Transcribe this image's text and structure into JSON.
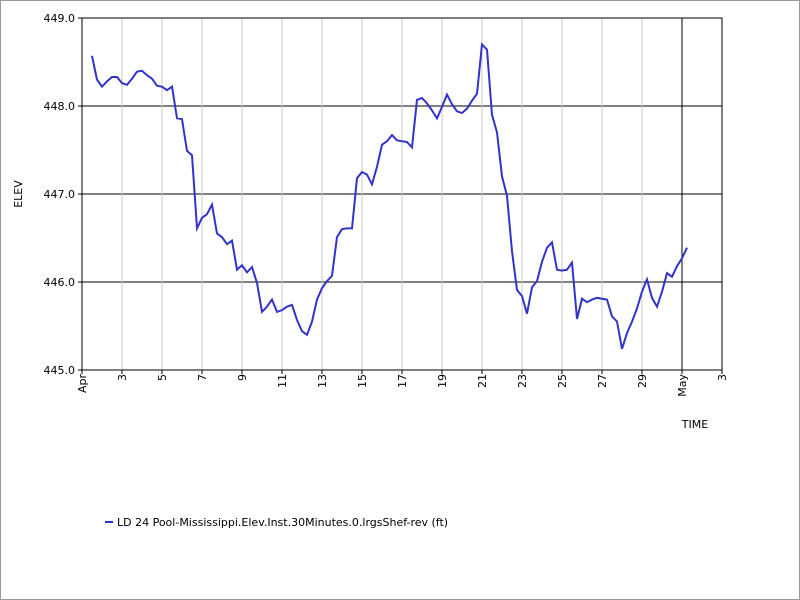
{
  "chart_data": {
    "type": "line",
    "y_label": "ELEV",
    "x_label": "TIME",
    "xlim": [
      1,
      33
    ],
    "xticks": [
      {
        "value": 1,
        "label": "Apr"
      },
      3,
      5,
      7,
      9,
      11,
      13,
      15,
      17,
      19,
      21,
      23,
      25,
      27,
      29,
      {
        "value": 31,
        "label": "May"
      },
      {
        "value": 33,
        "label": "3"
      }
    ],
    "ylim": [
      445.0,
      449.0
    ],
    "yticks": [
      {
        "value": 445,
        "label": "445.0"
      },
      {
        "value": 446,
        "label": "446.0"
      },
      {
        "value": 447,
        "label": "447.0"
      },
      {
        "value": 448,
        "label": "448.0"
      },
      {
        "value": 449,
        "label": "449.0"
      }
    ],
    "grid": true,
    "x": [
      1.5,
      1.75,
      2,
      2.25,
      2.5,
      2.75,
      3,
      3.25,
      3.5,
      3.75,
      4,
      4.25,
      4.5,
      4.75,
      5,
      5.25,
      5.5,
      5.75,
      6,
      6.25,
      6.5,
      6.75,
      7,
      7.25,
      7.5,
      7.75,
      8,
      8.25,
      8.5,
      8.75,
      9,
      9.25,
      9.5,
      9.75,
      10,
      10.25,
      10.5,
      10.75,
      11,
      11.25,
      11.5,
      11.75,
      12,
      12.25,
      12.5,
      12.75,
      13,
      13.25,
      13.5,
      13.75,
      14,
      14.25,
      14.5,
      14.75,
      15,
      15.25,
      15.5,
      15.75,
      16,
      16.25,
      16.5,
      16.75,
      17,
      17.25,
      17.5,
      17.75,
      18,
      18.25,
      18.5,
      18.75,
      19,
      19.25,
      19.5,
      19.75,
      20,
      20.25,
      20.5,
      20.75,
      21,
      21.25,
      21.5,
      21.75,
      22,
      22.25,
      22.5,
      22.75,
      23,
      23.25,
      23.5,
      23.75,
      24,
      24.25,
      24.5,
      24.75,
      25,
      25.25,
      25.5,
      25.75,
      26,
      26.25,
      26.5,
      26.75,
      27,
      27.25,
      27.5,
      27.75,
      28,
      28.25,
      28.5,
      28.75,
      29,
      29.25,
      29.5,
      29.75,
      30,
      30.25,
      30.5,
      30.75,
      31,
      31.25
    ],
    "series": [
      {
        "name": "LD 24 Pool-Mississippi.Elev.Inst.30Minutes.0.lrgsShef-rev (ft)",
        "color": "#3333cc",
        "values": [
          448.57,
          448.3,
          448.22,
          448.28,
          448.33,
          448.33,
          448.26,
          448.24,
          448.31,
          448.39,
          448.4,
          448.35,
          448.31,
          448.23,
          448.22,
          448.18,
          448.22,
          447.86,
          447.85,
          447.49,
          447.44,
          446.61,
          446.73,
          446.77,
          446.88,
          446.55,
          446.51,
          446.43,
          446.47,
          446.14,
          446.19,
          446.11,
          446.17,
          445.99,
          445.66,
          445.72,
          445.8,
          445.66,
          445.68,
          445.72,
          445.74,
          445.57,
          445.44,
          445.4,
          445.55,
          445.8,
          445.93,
          446.01,
          446.07,
          446.51,
          446.6,
          446.61,
          446.61,
          447.18,
          447.25,
          447.22,
          447.11,
          447.31,
          447.56,
          447.6,
          447.67,
          447.61,
          447.6,
          447.59,
          447.53,
          448.07,
          448.09,
          448.03,
          447.95,
          447.86,
          447.99,
          448.13,
          448.02,
          447.94,
          447.92,
          447.97,
          448.06,
          448.14,
          448.7,
          448.64,
          447.9,
          447.7,
          447.2,
          446.98,
          446.35,
          445.91,
          445.84,
          445.64,
          445.94,
          446.01,
          446.23,
          446.39,
          446.45,
          446.14,
          446.13,
          446.14,
          446.22,
          445.58,
          445.81,
          445.77,
          445.8,
          445.82,
          445.81,
          445.8,
          445.61,
          445.55,
          445.24,
          445.42,
          445.55,
          445.7,
          445.89,
          446.03,
          445.82,
          445.72,
          445.89,
          446.1,
          446.06,
          446.18,
          446.27,
          446.39
        ]
      }
    ]
  }
}
